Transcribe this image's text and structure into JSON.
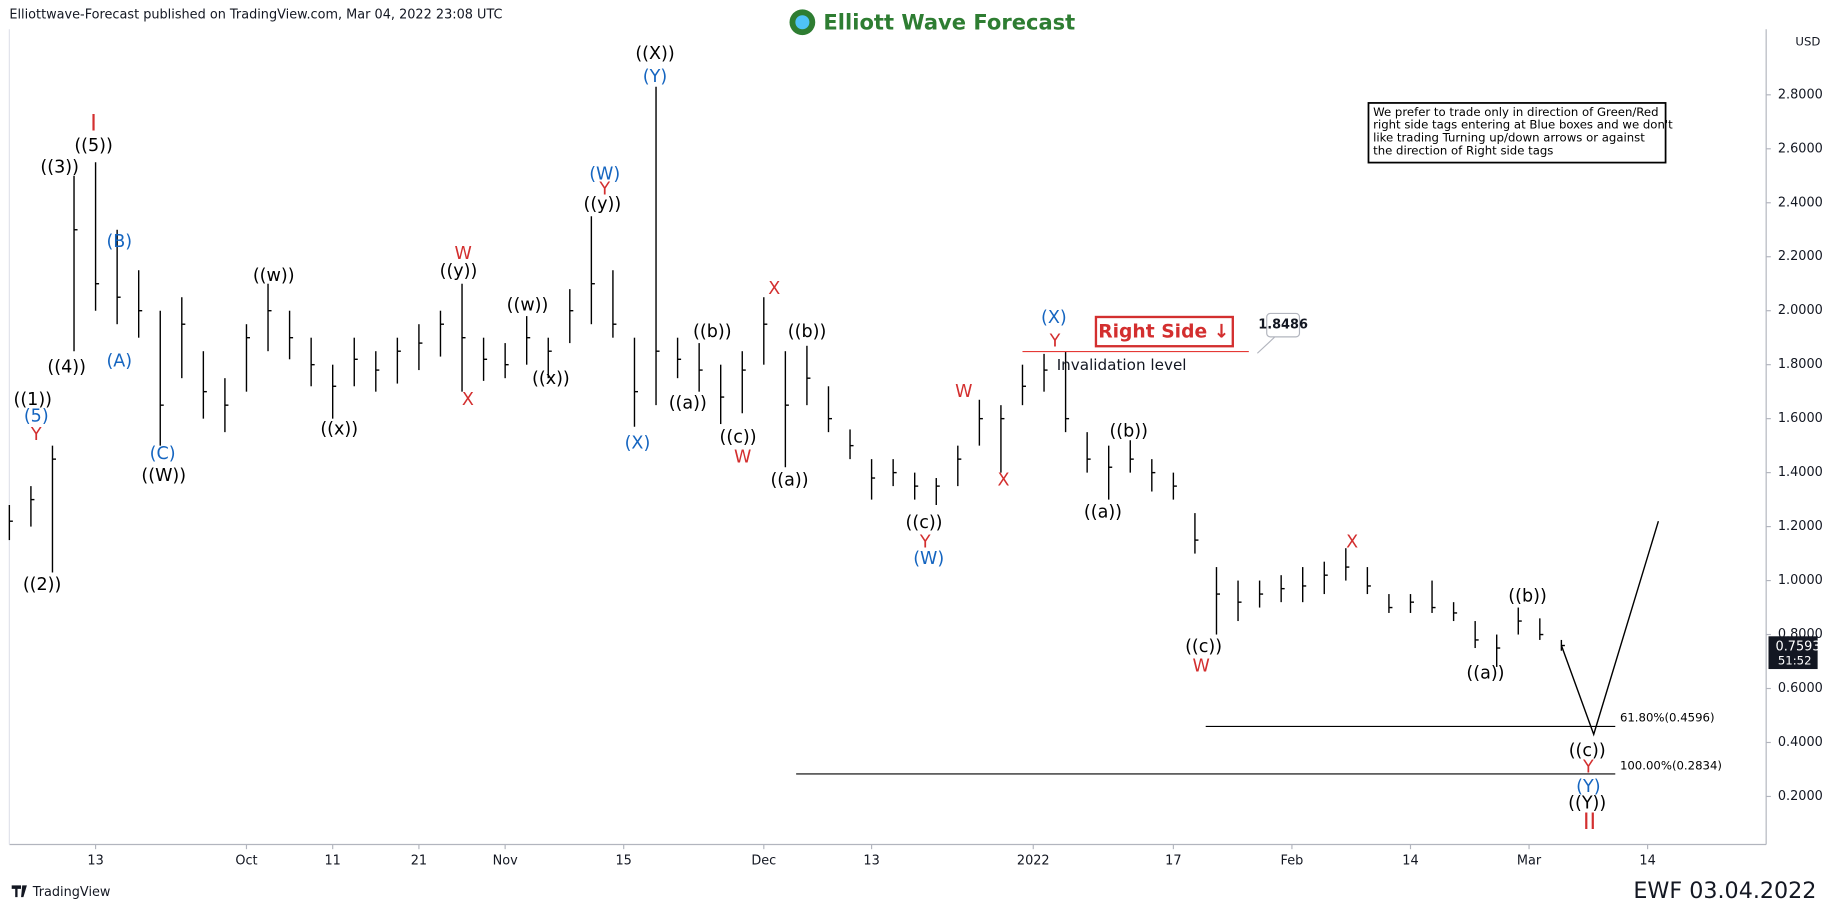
{
  "chart_data": {
    "type": "ohlc",
    "header": "Elliottwave-Forecast published on TradingView.com, Mar 04, 2022 23:08 UTC",
    "logo": "Elliott Wave Forecast",
    "currency": "USD",
    "note": [
      "We prefer to trade only in direction of Green/Red",
      "right side tags entering at Blue boxes and we don't",
      "like trading Turning up/down arrows or against",
      "the direction of Right side tags"
    ],
    "right_side": "Right Side ↓",
    "invalidation": {
      "value": 1.8486,
      "label": "Invalidation level",
      "x": [
        94,
        115
      ],
      "color": "#e53935"
    },
    "fib": [
      {
        "value": 0.4596,
        "label": "61.80%(0.4596)",
        "x": [
          111,
          149
        ]
      },
      {
        "value": 0.2834,
        "label": "100.00%(0.2834)",
        "x": [
          73,
          149
        ]
      }
    ],
    "projection": {
      "x": [
        144,
        147,
        153
      ],
      "values": [
        0.76,
        0.43,
        1.22
      ]
    },
    "last_price": 0.7593,
    "countdown": "51:52",
    "footer_left": "TradingView",
    "footer_right": "EWF 03.04.2022",
    "color": "#000000",
    "series": {
      "x": [
        0,
        2,
        4,
        6,
        8,
        10,
        12,
        14,
        16,
        18,
        20,
        22,
        24,
        26,
        28,
        30,
        32,
        34,
        36,
        38,
        40,
        42,
        44,
        46,
        48,
        50,
        52,
        54,
        56,
        58,
        60,
        62,
        64,
        66,
        68,
        70,
        72,
        74,
        76,
        78,
        80,
        82,
        84,
        86,
        88,
        90,
        92,
        94,
        96,
        98,
        100,
        102,
        104,
        106,
        108,
        110,
        112,
        114,
        116,
        118,
        120,
        122,
        124,
        126,
        128,
        130,
        132,
        134,
        136,
        138,
        140,
        142,
        144
      ],
      "high": [
        1.28,
        1.35,
        1.5,
        2.5,
        2.55,
        2.3,
        2.15,
        2.0,
        2.05,
        1.85,
        1.75,
        1.95,
        2.1,
        2.0,
        1.9,
        1.8,
        1.9,
        1.85,
        1.9,
        1.95,
        2.0,
        2.1,
        1.9,
        1.88,
        1.98,
        1.9,
        2.08,
        2.35,
        2.15,
        1.9,
        2.83,
        1.9,
        1.88,
        1.8,
        1.85,
        2.05,
        1.85,
        1.87,
        1.72,
        1.56,
        1.45,
        1.45,
        1.4,
        1.38,
        1.5,
        1.67,
        1.65,
        1.8,
        1.84,
        1.85,
        1.55,
        1.5,
        1.52,
        1.45,
        1.4,
        1.25,
        1.05,
        1.0,
        1.0,
        1.02,
        1.05,
        1.07,
        1.12,
        1.05,
        0.95,
        0.95,
        1.0,
        0.92,
        0.85,
        0.8,
        0.9,
        0.86,
        0.78
      ],
      "low": [
        1.15,
        1.2,
        1.03,
        1.85,
        2.0,
        1.95,
        1.9,
        1.5,
        1.75,
        1.6,
        1.55,
        1.7,
        1.85,
        1.82,
        1.72,
        1.6,
        1.72,
        1.7,
        1.73,
        1.78,
        1.83,
        1.7,
        1.74,
        1.75,
        1.8,
        1.75,
        1.88,
        1.95,
        1.9,
        1.57,
        1.65,
        1.75,
        1.7,
        1.58,
        1.62,
        1.8,
        1.42,
        1.65,
        1.55,
        1.45,
        1.3,
        1.35,
        1.3,
        1.28,
        1.35,
        1.5,
        1.4,
        1.65,
        1.7,
        1.55,
        1.4,
        1.3,
        1.4,
        1.33,
        1.3,
        1.1,
        0.8,
        0.85,
        0.9,
        0.92,
        0.92,
        0.95,
        1.0,
        0.95,
        0.88,
        0.88,
        0.88,
        0.85,
        0.75,
        0.68,
        0.8,
        0.78,
        0.74
      ],
      "close": [
        1.22,
        1.3,
        1.45,
        2.3,
        2.1,
        2.05,
        2.0,
        1.65,
        1.95,
        1.7,
        1.65,
        1.9,
        2.0,
        1.9,
        1.8,
        1.72,
        1.82,
        1.78,
        1.85,
        1.88,
        1.95,
        1.9,
        1.82,
        1.8,
        1.9,
        1.85,
        2.0,
        2.1,
        1.95,
        1.7,
        1.85,
        1.82,
        1.78,
        1.68,
        1.78,
        1.95,
        1.65,
        1.75,
        1.6,
        1.5,
        1.38,
        1.4,
        1.35,
        1.35,
        1.45,
        1.6,
        1.6,
        1.72,
        1.78,
        1.6,
        1.45,
        1.42,
        1.45,
        1.4,
        1.35,
        1.15,
        0.95,
        0.92,
        0.95,
        0.97,
        0.98,
        1.02,
        1.05,
        0.98,
        0.9,
        0.92,
        0.9,
        0.88,
        0.78,
        0.75,
        0.85,
        0.8,
        0.7593
      ]
    },
    "xlim": [
      0,
      163
    ],
    "xticks": [
      {
        "value": 8,
        "label": "13"
      },
      {
        "value": 22,
        "label": "Oct"
      },
      {
        "value": 30,
        "label": "11"
      },
      {
        "value": 38,
        "label": "21"
      },
      {
        "value": 46,
        "label": "Nov"
      },
      {
        "value": 57,
        "label": "15"
      },
      {
        "value": 70,
        "label": "Dec"
      },
      {
        "value": 80,
        "label": "13"
      },
      {
        "value": 95,
        "label": "2022"
      },
      {
        "value": 108,
        "label": "17"
      },
      {
        "value": 119,
        "label": "Feb"
      },
      {
        "value": 130,
        "label": "14"
      },
      {
        "value": 141,
        "label": "Mar"
      },
      {
        "value": 152,
        "label": "14"
      }
    ],
    "ylim": [
      0.022,
      3.043
    ],
    "yticks": [
      {
        "value": 0.2,
        "label": "0.2000"
      },
      {
        "value": 0.4,
        "label": "0.4000"
      },
      {
        "value": 0.6,
        "label": "0.6000"
      },
      {
        "value": 0.8,
        "label": "0.8000"
      },
      {
        "value": 1.0,
        "label": "1.0000"
      },
      {
        "value": 1.2,
        "label": "1.2000"
      },
      {
        "value": 1.4,
        "label": "1.4000"
      },
      {
        "value": 1.6,
        "label": "1.6000"
      },
      {
        "value": 1.8,
        "label": "1.8000"
      },
      {
        "value": 2.0,
        "label": "2.0000"
      },
      {
        "value": 2.2,
        "label": "2.2000"
      },
      {
        "value": 2.4,
        "label": "2.4000"
      },
      {
        "value": 2.6,
        "label": "2.6000"
      },
      {
        "value": 2.8,
        "label": "2.8000"
      }
    ],
    "wave_labels": [
      {
        "text": "((1))",
        "color": "#000000"
      },
      {
        "text": "(5)",
        "color": "#1565c0"
      },
      {
        "text": "Y",
        "color": "#d32f2f"
      },
      {
        "text": "((2))",
        "color": "#000000"
      },
      {
        "text": "((3))",
        "color": "#000000"
      },
      {
        "text": "((4))",
        "color": "#000000"
      },
      {
        "text": "((5))",
        "color": "#000000"
      },
      {
        "text": "I",
        "color": "#d32f2f"
      },
      {
        "text": "(B)",
        "color": "#1565c0"
      },
      {
        "text": "(A)",
        "color": "#1565c0"
      },
      {
        "text": "(C)",
        "color": "#1565c0"
      },
      {
        "text": "((W))",
        "color": "#000000"
      },
      {
        "text": "((w))",
        "color": "#000000"
      },
      {
        "text": "((x))",
        "color": "#000000"
      },
      {
        "text": "W",
        "color": "#d32f2f"
      },
      {
        "text": "((y))",
        "color": "#000000"
      },
      {
        "text": "X",
        "color": "#d32f2f"
      },
      {
        "text": "((w))",
        "color": "#000000"
      },
      {
        "text": "((x))",
        "color": "#000000"
      },
      {
        "text": "(W)",
        "color": "#1565c0"
      },
      {
        "text": "Y",
        "color": "#d32f2f"
      },
      {
        "text": "((y))",
        "color": "#000000"
      },
      {
        "text": "((X))",
        "color": "#000000"
      },
      {
        "text": "(Y)",
        "color": "#1565c0"
      },
      {
        "text": "(X)",
        "color": "#1565c0"
      },
      {
        "text": "((b))",
        "color": "#000000"
      },
      {
        "text": "((a))",
        "color": "#000000"
      },
      {
        "text": "((c))",
        "color": "#000000"
      },
      {
        "text": "W",
        "color": "#d32f2f"
      },
      {
        "text": "X",
        "color": "#d32f2f"
      },
      {
        "text": "((b))",
        "color": "#000000"
      },
      {
        "text": "((a))",
        "color": "#000000"
      },
      {
        "text": "W",
        "color": "#d32f2f"
      },
      {
        "text": "X",
        "color": "#d32f2f"
      },
      {
        "text": "((c))",
        "color": "#000000"
      },
      {
        "text": "Y",
        "color": "#d32f2f"
      },
      {
        "text": "(W)",
        "color": "#1565c0"
      },
      {
        "text": "(X)",
        "color": "#1565c0"
      },
      {
        "text": "Y",
        "color": "#d32f2f"
      },
      {
        "text": "((b))",
        "color": "#000000"
      },
      {
        "text": "((a))",
        "color": "#000000"
      },
      {
        "text": "((c))",
        "color": "#000000"
      },
      {
        "text": "W",
        "color": "#d32f2f"
      },
      {
        "text": "X",
        "color": "#d32f2f"
      },
      {
        "text": "((b))",
        "color": "#000000"
      },
      {
        "text": "((a))",
        "color": "#000000"
      },
      {
        "text": "((c))",
        "color": "#000000"
      },
      {
        "text": "Y",
        "color": "#d32f2f"
      },
      {
        "text": "(Y)",
        "color": "#1565c0"
      },
      {
        "text": "((Y))",
        "color": "#000000"
      },
      {
        "text": "II",
        "color": "#d32f2f"
      }
    ]
  }
}
